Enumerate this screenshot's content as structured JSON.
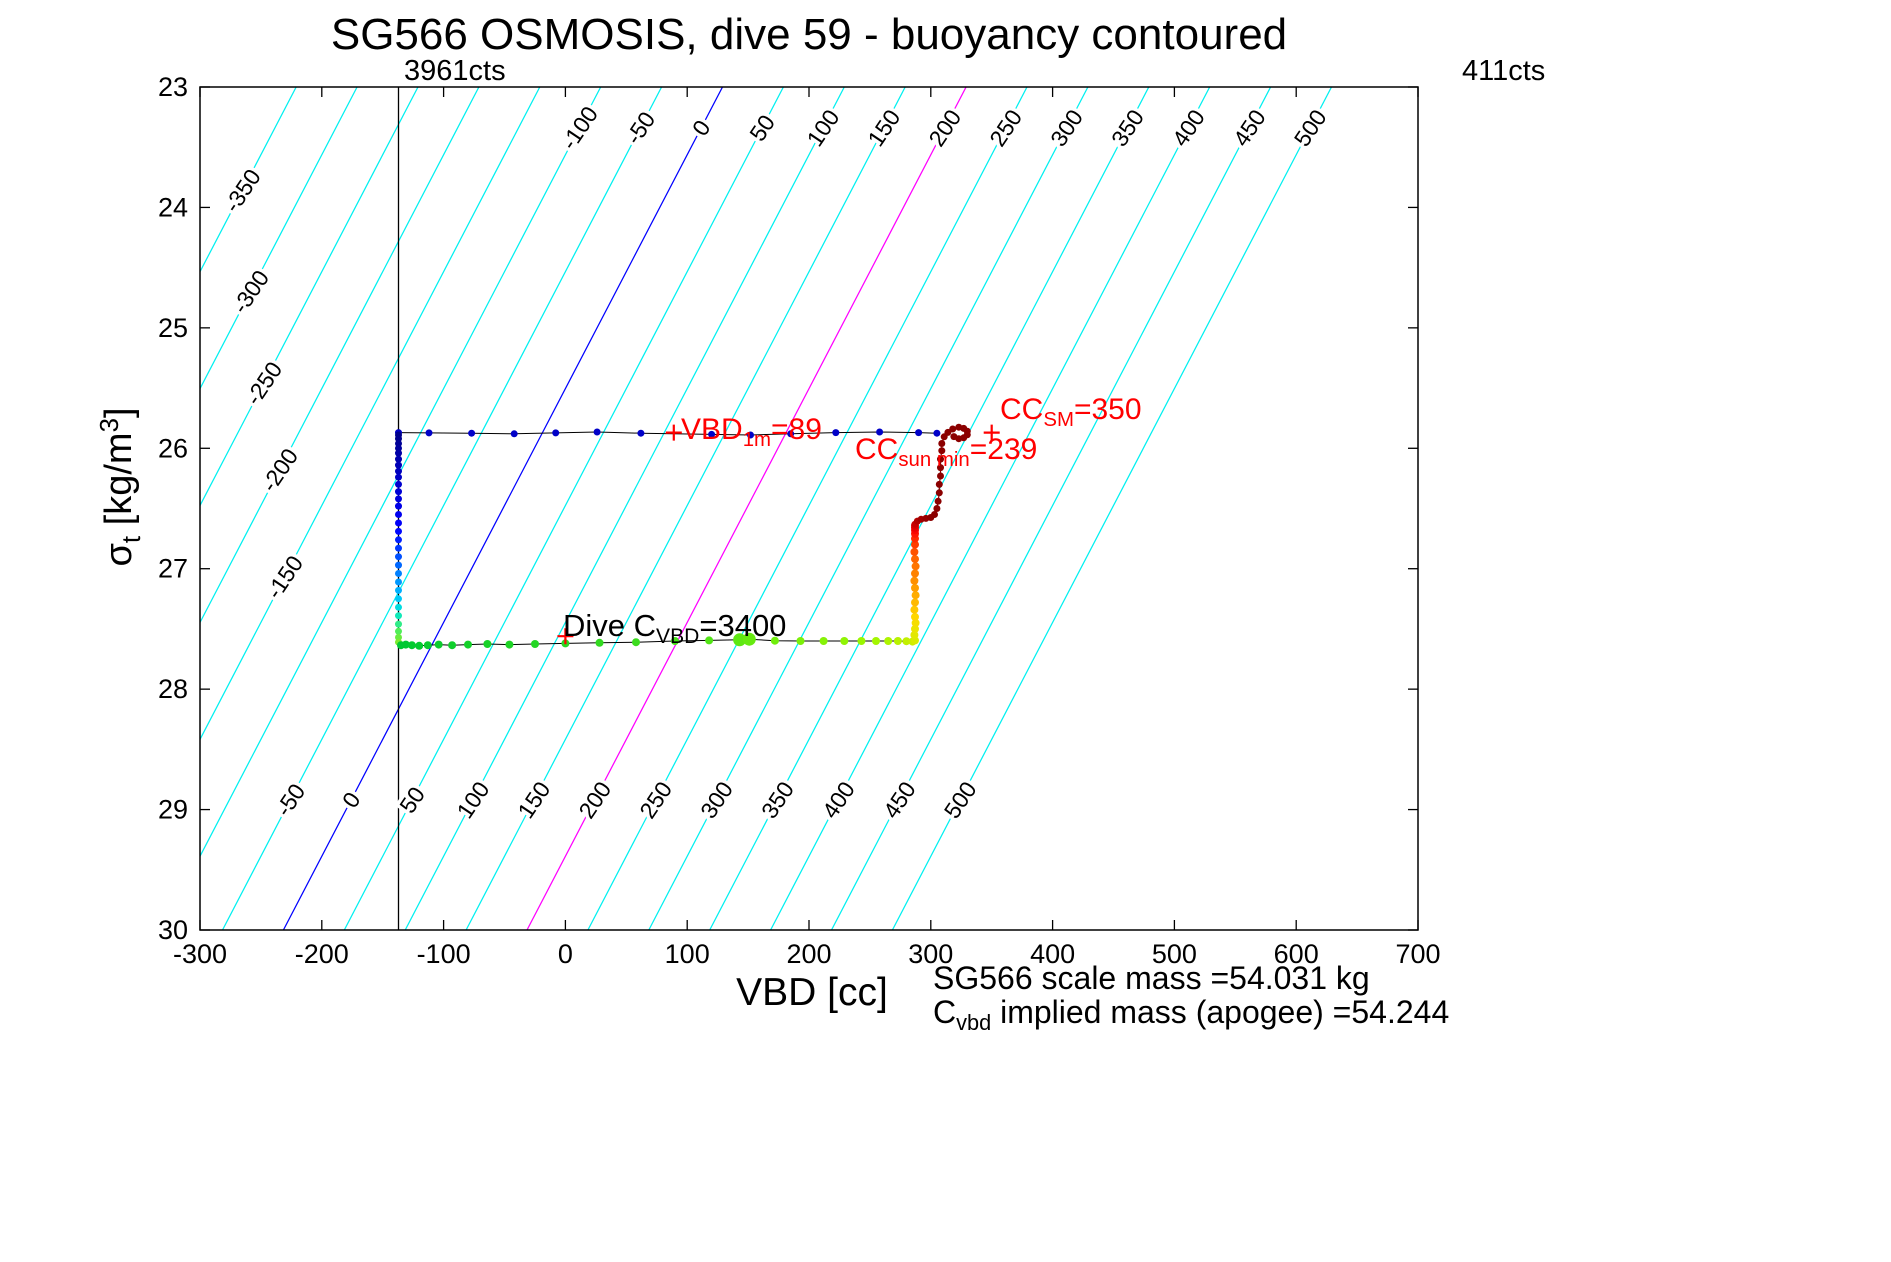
{
  "title": "SG566 OSMOSIS, dive 59 - buoyancy contoured",
  "labels": {
    "top_left_counts": "3961cts",
    "top_right_counts": "411cts",
    "xlabel": "VBD [cc]",
    "ylabel_parts": [
      {
        "t": "σ"
      },
      {
        "t": "t",
        "sub": true
      },
      {
        "t": " [kg/m"
      },
      {
        "t": "3",
        "sup": true
      },
      {
        "t": "]"
      }
    ],
    "footer_line1": "SG566 scale mass =54.031 kg",
    "footer_line2_parts": [
      {
        "t": "C"
      },
      {
        "t": "vbd",
        "sub": true
      },
      {
        "t": " implied mass (apogee) =54.244"
      }
    ]
  },
  "key_values": {
    "vbd_1m_cc": 89,
    "cc_sun_min_cc": 239,
    "cc_sm_cc": 350,
    "dive_c_vbd_counts": 3400,
    "vbd_counts_at_marker": "3961cts",
    "vbd_counts_right": "411cts",
    "scale_mass_kg": 54.031,
    "implied_mass_apogee_kg": 54.244
  },
  "annotations": [
    {
      "name": "vbd-1m",
      "color": "#ff0000",
      "vbd": 95,
      "sigma": 25.92,
      "size": 30,
      "parts": [
        {
          "t": "VBD"
        },
        {
          "t": "1m",
          "sub": true
        },
        {
          "t": "=89"
        }
      ]
    },
    {
      "name": "cc-sun-min",
      "color": "#ff0000",
      "vbd": 238,
      "sigma": 26.09,
      "size": 30,
      "parts": [
        {
          "t": "CC"
        },
        {
          "t": "sun min",
          "sub": true
        },
        {
          "t": "=239"
        }
      ]
    },
    {
      "name": "cc-sm",
      "color": "#ff0000",
      "vbd": 357,
      "sigma": 25.76,
      "size": 30,
      "parts": [
        {
          "t": "CC"
        },
        {
          "t": "SM",
          "sub": true
        },
        {
          "t": "=350"
        }
      ]
    },
    {
      "name": "dive-c-vbd",
      "color": "#000000",
      "vbd": -2,
      "sigma": 27.54,
      "size": 31,
      "parts": [
        {
          "t": "Dive C"
        },
        {
          "t": "VBD",
          "sub": true
        },
        {
          "t": "=3400"
        }
      ]
    }
  ],
  "chart_data": {
    "type": "scatter",
    "title": "SG566 OSMOSIS, dive 59 - buoyancy contoured",
    "xlabel": "VBD [cc]",
    "ylabel": "sigma_t [kg/m^3]",
    "xlim": [
      -300,
      700
    ],
    "ylim": [
      23,
      30
    ],
    "y_increases_downward": true,
    "x_ticks": [
      -300,
      -200,
      -100,
      0,
      100,
      200,
      300,
      400,
      500,
      600,
      700
    ],
    "y_ticks": [
      23,
      24,
      25,
      26,
      27,
      28,
      29,
      30
    ],
    "vertical_marker_line": {
      "vbd": -137,
      "label": "3961cts",
      "color": "#000000"
    },
    "buoyancy_contours": {
      "unit": "cc",
      "values": [
        -350,
        -300,
        -250,
        -200,
        -150,
        -100,
        -50,
        0,
        50,
        100,
        150,
        200,
        250,
        300,
        350,
        400,
        450,
        500
      ],
      "vbd_intercept_at_sigma23": 129,
      "dvbd_dsigma": -51.5,
      "default_color": "#00f0f0",
      "highlight_colors": {
        "0": "#0000ff",
        "200": "#ff00ff"
      },
      "label_rows": {
        "left": {
          "values": [
            -350,
            -300,
            -250,
            -200,
            -150
          ],
          "sigma": [
            23.86,
            24.7,
            25.46,
            26.18,
            27.07
          ]
        },
        "top": {
          "values": [
            -100,
            -50,
            0,
            50,
            100,
            150,
            200,
            250,
            300,
            350,
            400,
            450,
            500
          ],
          "sigma": 23.34
        },
        "bottom": {
          "values": [
            -50,
            0,
            50,
            100,
            150,
            200,
            250,
            300,
            350,
            400,
            450,
            500
          ],
          "sigma": 28.92
        }
      }
    },
    "plus_markers": {
      "color": "#ff0000",
      "points": [
        {
          "vbd": 89,
          "sigma": 25.87
        },
        {
          "vbd": 350,
          "sigma": 25.87
        },
        {
          "vbd": 0,
          "sigma": 27.56
        }
      ]
    },
    "series": [
      {
        "name": "near-surface-1m-level",
        "line_color": "#000000",
        "line_width": 1,
        "marker_r": 3.5,
        "points": [
          [
            -137,
            25.87,
            "#0000c8"
          ],
          [
            -112,
            25.872,
            "#0000c8"
          ],
          [
            -77,
            25.875,
            "#0000c8"
          ],
          [
            -42,
            25.88,
            "#0000c8"
          ],
          [
            -8,
            25.872,
            "#0000c8"
          ],
          [
            26,
            25.865,
            "#0000c8"
          ],
          [
            62,
            25.875,
            "#0000c8"
          ],
          [
            120,
            25.885,
            "#0000c8"
          ],
          [
            152,
            25.89,
            "#0000c8"
          ],
          [
            185,
            25.88,
            "#0000c8"
          ],
          [
            222,
            25.87,
            "#0000c8"
          ],
          [
            258,
            25.865,
            "#0000c8"
          ],
          [
            290,
            25.87,
            "#0000c8"
          ],
          [
            305,
            25.875,
            "#0000c8"
          ]
        ]
      },
      {
        "name": "dive-descent-column",
        "line_color": null,
        "marker_r": 3.5,
        "points": [
          [
            -137,
            25.89,
            "#00008b"
          ],
          [
            -137,
            25.92,
            "#00008f"
          ],
          [
            -137,
            25.96,
            "#000096"
          ],
          [
            -137,
            26.0,
            "#00009e"
          ],
          [
            -137,
            26.04,
            "#0000a6"
          ],
          [
            -137,
            26.09,
            "#0000ae"
          ],
          [
            -137,
            26.14,
            "#0000b6"
          ],
          [
            -137,
            26.19,
            "#0000be"
          ],
          [
            -137,
            26.24,
            "#0000c6"
          ],
          [
            -137,
            26.3,
            "#0000ce"
          ],
          [
            -137,
            26.36,
            "#0000d6"
          ],
          [
            -137,
            26.42,
            "#0000de"
          ],
          [
            -137,
            26.48,
            "#0000e6"
          ],
          [
            -137,
            26.55,
            "#0000ee"
          ],
          [
            -137,
            26.62,
            "#0000f8"
          ],
          [
            -137,
            26.69,
            "#0008ff"
          ],
          [
            -137,
            26.76,
            "#0020ff"
          ],
          [
            -137,
            26.83,
            "#0038ff"
          ],
          [
            -137,
            26.9,
            "#0050ff"
          ],
          [
            -137,
            26.97,
            "#0068ff"
          ],
          [
            -137,
            27.04,
            "#0080ff"
          ],
          [
            -137,
            27.11,
            "#0098ff"
          ],
          [
            -137,
            27.18,
            "#00b0ff"
          ],
          [
            -137,
            27.25,
            "#00c8f8"
          ],
          [
            -137,
            27.32,
            "#00dce0"
          ],
          [
            -137,
            27.39,
            "#10e8b8"
          ],
          [
            -137,
            27.46,
            "#30ec88"
          ],
          [
            -137,
            27.52,
            "#50ee58"
          ],
          [
            -137,
            27.57,
            "#68ec40"
          ],
          [
            -137,
            27.61,
            "#7cea30"
          ]
        ]
      },
      {
        "name": "apogee-drift-line",
        "line_color": "#000000",
        "line_width": 1,
        "marker_r": 4,
        "points": [
          [
            -135,
            27.635,
            "#00c832"
          ],
          [
            -131,
            27.63,
            "#00c832"
          ],
          [
            -126,
            27.635,
            "#04ca30"
          ],
          [
            -120,
            27.64,
            "#04ca30"
          ],
          [
            -113,
            27.635,
            "#08cc2e"
          ],
          [
            -104,
            27.63,
            "#0ccc2e"
          ],
          [
            -93,
            27.635,
            "#10ce2c"
          ],
          [
            -80,
            27.63,
            "#14d02a"
          ],
          [
            -64,
            27.625,
            "#18d228"
          ],
          [
            -46,
            27.63,
            "#1ed426"
          ],
          [
            -25,
            27.625,
            "#24d624"
          ],
          [
            0,
            27.62,
            "#2ad822"
          ],
          [
            28,
            27.615,
            "#32da20"
          ],
          [
            58,
            27.61,
            "#3cdc1e"
          ],
          [
            90,
            27.6,
            "#46e01a"
          ],
          [
            118,
            27.595,
            "#52e416"
          ],
          [
            143,
            27.59,
            "#5ee812",
            6.5
          ],
          [
            151,
            27.585,
            "#66ea10",
            6.5
          ],
          [
            172,
            27.598,
            "#70ee0c"
          ],
          [
            193,
            27.6,
            "#7cf008"
          ],
          [
            212,
            27.6,
            "#86f206"
          ],
          [
            229,
            27.6,
            "#90f404"
          ],
          [
            243,
            27.6,
            "#9af600"
          ],
          [
            255,
            27.6,
            "#a4f600"
          ],
          [
            265,
            27.6,
            "#aef400"
          ],
          [
            273,
            27.6,
            "#b8f200"
          ],
          [
            280,
            27.602,
            "#c2f000"
          ],
          [
            285,
            27.605,
            "#ccee00"
          ]
        ]
      },
      {
        "name": "apogee-pump-column",
        "line_color": null,
        "marker_r": 4,
        "points": [
          [
            287,
            27.595,
            "#d8ec00"
          ],
          [
            286.5,
            27.55,
            "#e2e800"
          ],
          [
            287,
            27.5,
            "#ece400"
          ],
          [
            287.5,
            27.45,
            "#f6de00"
          ],
          [
            287,
            27.4,
            "#ffd600"
          ],
          [
            286.5,
            27.34,
            "#ffc800"
          ],
          [
            287,
            27.28,
            "#ffba00"
          ],
          [
            287.5,
            27.22,
            "#ffac00"
          ],
          [
            287,
            27.16,
            "#ff9e00"
          ],
          [
            286.5,
            27.1,
            "#ff9000"
          ],
          [
            287,
            27.04,
            "#ff8200"
          ],
          [
            287.5,
            26.98,
            "#ff7400"
          ],
          [
            287,
            26.92,
            "#ff6600"
          ],
          [
            286.5,
            26.86,
            "#ff5200"
          ],
          [
            287,
            26.8,
            "#ff3e00"
          ],
          [
            287,
            26.75,
            "#ff2a00"
          ],
          [
            287,
            26.71,
            "#ff1600"
          ],
          [
            287,
            26.68,
            "#fa0500"
          ],
          [
            287,
            26.66,
            "#ec0000"
          ],
          [
            287,
            26.64,
            "#dc0000"
          ]
        ]
      },
      {
        "name": "climb-final-maroon",
        "line_color": "#8b0000",
        "line_width": 1.2,
        "marker_r": 3.5,
        "points": [
          [
            287,
            26.63,
            "#c80000"
          ],
          [
            289,
            26.605,
            "#b40000"
          ],
          [
            292,
            26.59,
            "#a00000"
          ],
          [
            296,
            26.582,
            "#960000"
          ],
          [
            300,
            26.575,
            "#8b0000"
          ],
          [
            303,
            26.55,
            "#8b0000"
          ],
          [
            305,
            26.5,
            "#8b0000"
          ],
          [
            306,
            26.44,
            "#8b0000"
          ],
          [
            307,
            26.37,
            "#8b0000"
          ],
          [
            307,
            26.3,
            "#8b0000"
          ],
          [
            308,
            26.23,
            "#8b0000"
          ],
          [
            308,
            26.16,
            "#8b0000"
          ],
          [
            308,
            26.09,
            "#8b0000"
          ],
          [
            309,
            26.02,
            "#8b0000"
          ],
          [
            309,
            25.96,
            "#8b0000"
          ],
          [
            311,
            25.905,
            "#8b0000"
          ],
          [
            314,
            25.868,
            "#8b0000"
          ],
          [
            318,
            25.84,
            "#8b0000"
          ],
          [
            323,
            25.825,
            "#8b0000"
          ],
          [
            327,
            25.835,
            "#8b0000"
          ],
          [
            330,
            25.858,
            "#8b0000"
          ],
          [
            330,
            25.888,
            "#8b0000"
          ],
          [
            327,
            25.913,
            "#8b0000"
          ],
          [
            323,
            25.92,
            "#8b0000"
          ],
          [
            319,
            25.903,
            "#8b0000"
          ]
        ]
      }
    ]
  }
}
